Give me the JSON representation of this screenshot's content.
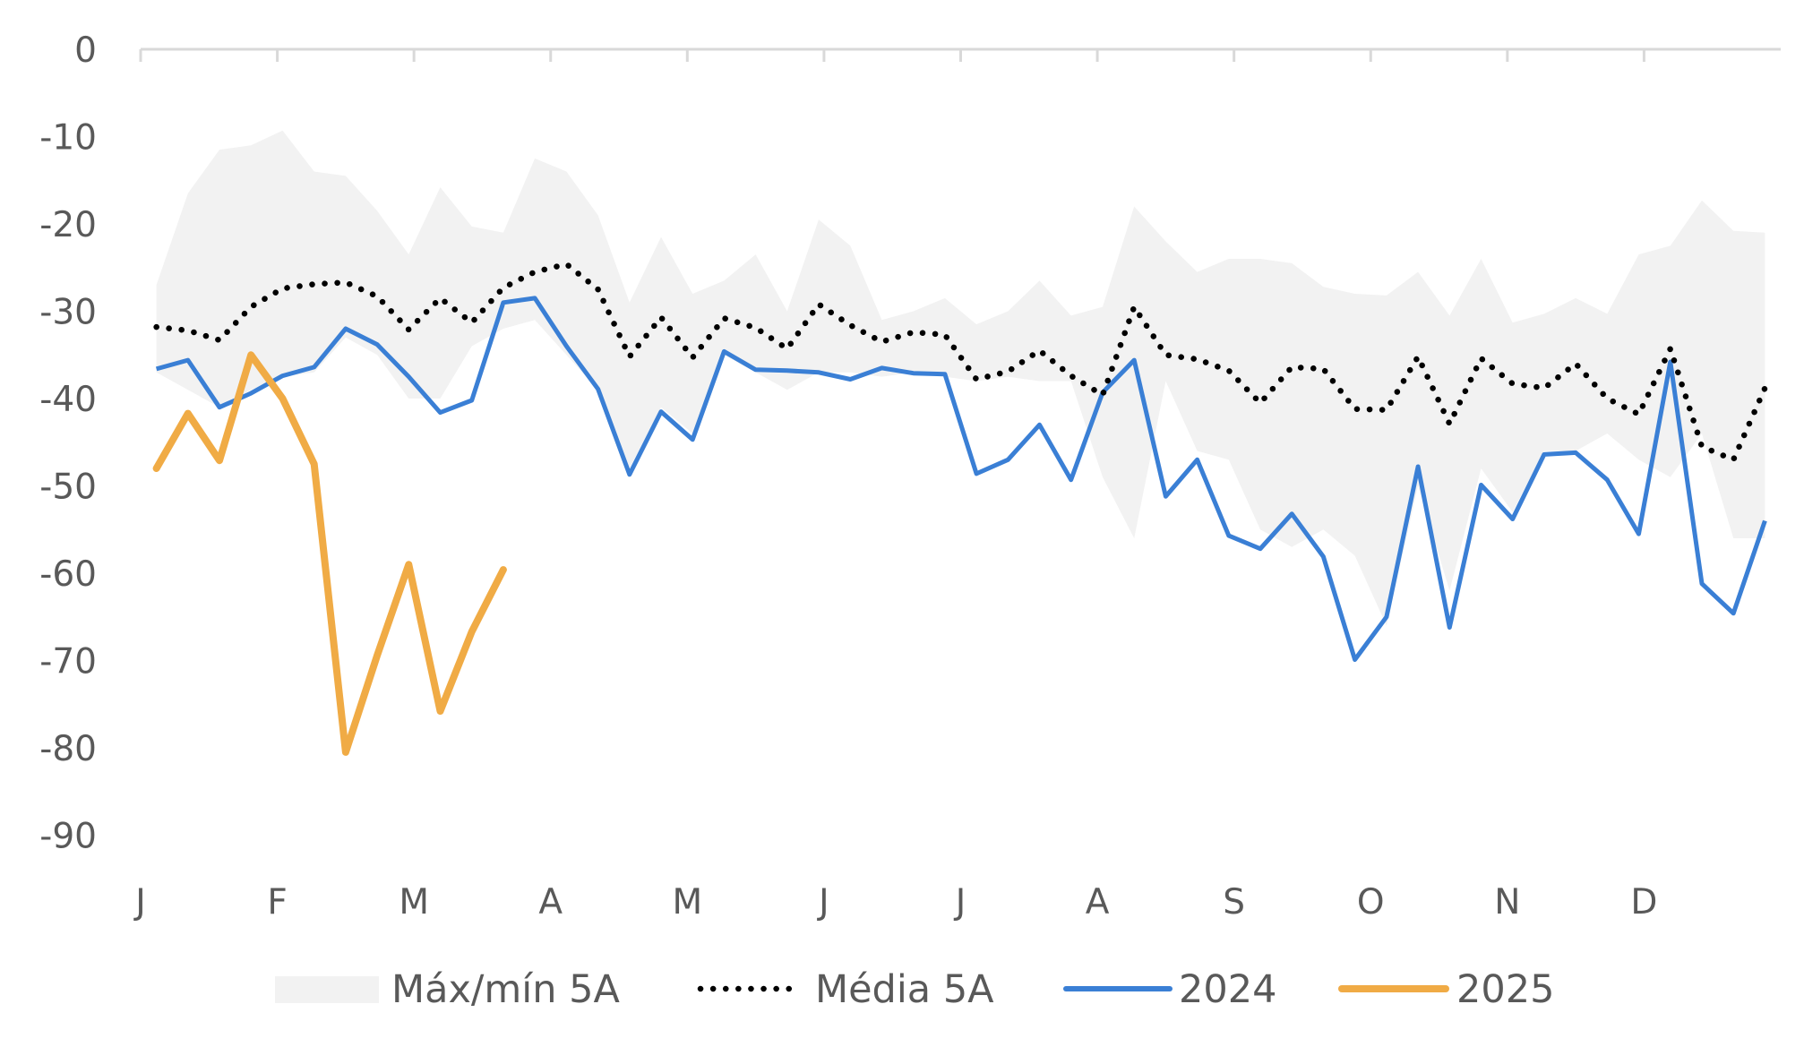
{
  "chart_data": {
    "type": "line",
    "title": "",
    "xlabel": "",
    "ylabel": "",
    "ylim": [
      -90,
      0
    ],
    "y_ticks": [
      "0",
      "-10",
      "-20",
      "-30",
      "-40",
      "-50",
      "-60",
      "-70",
      "-80",
      "-90"
    ],
    "x_ticks": [
      "J",
      "F",
      "M",
      "A",
      "M",
      "J",
      "J",
      "A",
      "S",
      "O",
      "N",
      "D"
    ],
    "x_unit": "week of year (1-52)",
    "grid": false,
    "legend_position": "bottom",
    "colors": {
      "band": "#f2f2f2",
      "avg": "#000000",
      "s2024": "#3a7fd5",
      "s2025": "#f0ab45",
      "axis": "#d9d9d9",
      "text": "#595959"
    },
    "series": [
      {
        "name": "Máx/mín 5A",
        "kind": "band",
        "max": [
          -27,
          -16.5,
          -11.5,
          -11,
          -9.3,
          -14,
          -14.5,
          -18.5,
          -23.5,
          -15.8,
          -20.3,
          -21,
          -12.5,
          -14,
          -19,
          -29,
          -21.5,
          -28,
          -26.5,
          -23.5,
          -30,
          -19.5,
          -22.5,
          -31,
          -30,
          -28.5,
          -31.5,
          -30,
          -26.5,
          -30.5,
          -29.5,
          -18,
          -22,
          -25.5,
          -24,
          -24,
          -24.5,
          -27.2,
          -28,
          -28.2,
          -25.5,
          -30.5,
          -24,
          -31.3,
          -30.3,
          -28.5,
          -30.3,
          -23.5,
          -22.5,
          -17.3,
          -20.8,
          -21
        ],
        "min": [
          -37,
          -39,
          -41,
          -39,
          -37.5,
          -37,
          -33,
          -35,
          -40,
          -40,
          -34,
          -32,
          -31,
          -35,
          -39,
          -48,
          -41,
          -44,
          -35,
          -37,
          -39,
          -37,
          -37,
          -37.5,
          -37,
          -37.5,
          -38,
          -37.5,
          -38,
          -38,
          -49,
          -56,
          -38,
          -46,
          -47,
          -55,
          -57,
          -55,
          -58,
          -66,
          -50,
          -62,
          -48,
          -53,
          -46,
          -46,
          -44,
          -47,
          -49,
          -44,
          -56,
          -56
        ]
      },
      {
        "name": "Média 5A",
        "kind": "dotted",
        "values": [
          -31.8,
          -32.2,
          -33.3,
          -29.5,
          -27.4,
          -26.9,
          -26.7,
          -28.3,
          -32.1,
          -28.5,
          -31.3,
          -27.3,
          -25.5,
          -24.6,
          -27.5,
          -35.2,
          -30.7,
          -35.3,
          -30.8,
          -31.9,
          -34.3,
          -29.2,
          -31.6,
          -33.5,
          -32.4,
          -32.7,
          -37.8,
          -36.9,
          -34.5,
          -37.4,
          -39.6,
          -29.5,
          -35.0,
          -35.5,
          -36.8,
          -40.5,
          -36.4,
          -36.6,
          -41.2,
          -41.3,
          -35.2,
          -42.9,
          -35.4,
          -38.3,
          -38.8,
          -36.0,
          -40.0,
          -41.8,
          -34.3,
          -45.5,
          -47.0,
          -38.8
        ]
      },
      {
        "name": "2024",
        "kind": "line",
        "values": [
          -36.6,
          -35.6,
          -41.0,
          -39.4,
          -37.4,
          -36.4,
          -32.0,
          -33.8,
          -37.5,
          -41.6,
          -40.2,
          -29.0,
          -28.5,
          -34.0,
          -38.9,
          -48.7,
          -41.5,
          -44.7,
          -34.6,
          -36.7,
          -36.8,
          -37.0,
          -37.8,
          -36.5,
          -37.1,
          -37.2,
          -48.6,
          -47.0,
          -43.0,
          -49.3,
          -39.3,
          -35.6,
          -51.2,
          -47.0,
          -55.7,
          -57.2,
          -53.2,
          -58.1,
          -69.9,
          -65.0,
          -47.8,
          -66.2,
          -49.9,
          -53.8,
          -46.4,
          -46.2,
          -49.3,
          -55.5,
          -35.8,
          -61.2,
          -64.6,
          -54.0
        ]
      },
      {
        "name": "2025",
        "kind": "line",
        "values": [
          -48.0,
          -41.7,
          -47.1,
          -35.0,
          -40.0,
          -47.5,
          -80.5,
          -69.4,
          -59.0,
          -75.8,
          -66.7,
          -59.6
        ]
      }
    ]
  }
}
